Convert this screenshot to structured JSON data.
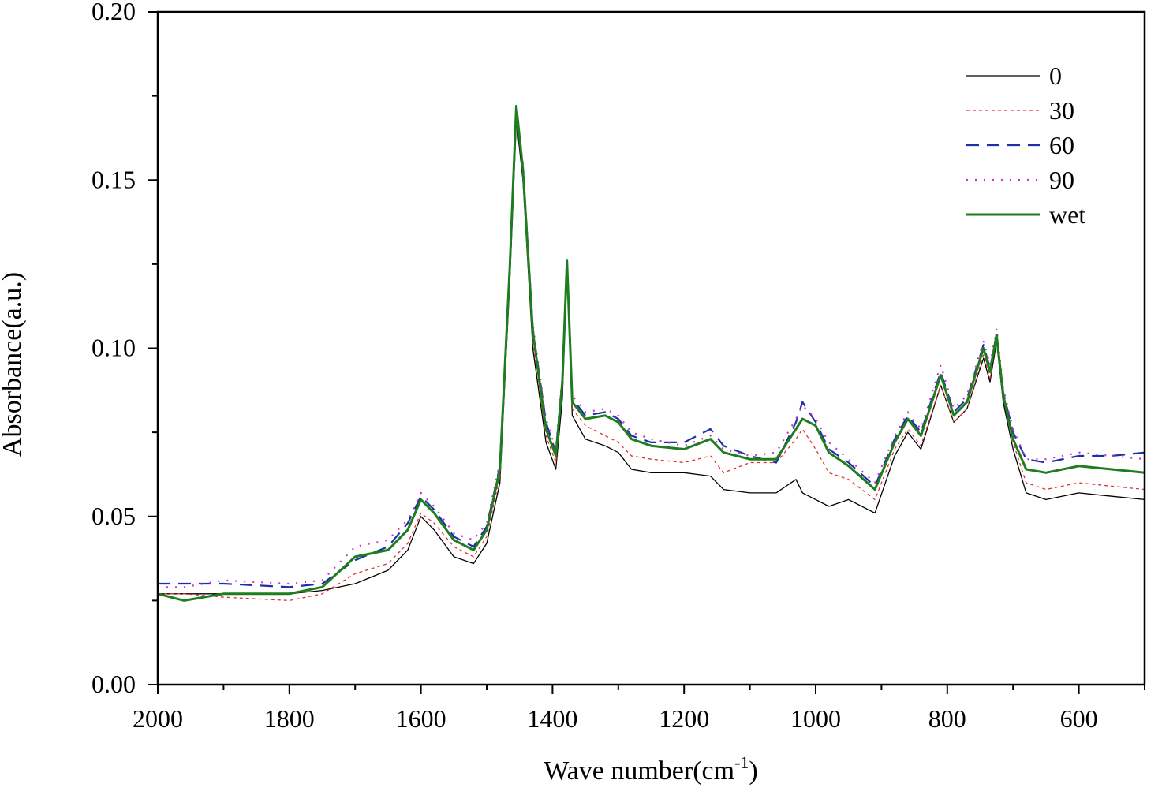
{
  "chart_data": {
    "type": "line",
    "title": "",
    "xlabel": "Wave number(cm",
    "xlabel_sup": "-1",
    "xlabel_close": ")",
    "ylabel": "Absorbance(a.u.)",
    "xlim": [
      2000,
      500
    ],
    "x_reversed": true,
    "ylim": [
      0,
      0.2
    ],
    "x_ticks": [
      2000,
      1800,
      1600,
      1400,
      1200,
      1000,
      800,
      600
    ],
    "x_tick_labels": [
      "2000",
      "1800",
      "1600",
      "1400",
      "1200",
      "1000",
      "800",
      "600"
    ],
    "y_ticks": [
      0,
      0.05,
      0.1,
      0.15,
      0.2
    ],
    "y_tick_labels": [
      "0.00",
      "0.05",
      "0.10",
      "0.15",
      "0.20"
    ],
    "grid": false,
    "legend_position": "top-right",
    "x": [
      2000,
      1960,
      1900,
      1800,
      1750,
      1700,
      1650,
      1620,
      1600,
      1580,
      1550,
      1520,
      1500,
      1480,
      1465,
      1455,
      1445,
      1430,
      1410,
      1395,
      1385,
      1378,
      1370,
      1350,
      1320,
      1300,
      1280,
      1250,
      1200,
      1160,
      1140,
      1100,
      1060,
      1030,
      1020,
      1000,
      980,
      950,
      910,
      880,
      860,
      840,
      810,
      790,
      770,
      745,
      735,
      725,
      715,
      700,
      680,
      650,
      600,
      550,
      500
    ],
    "series": [
      {
        "name": "0",
        "color": "#000000",
        "dash": "",
        "width": 1.3,
        "values": [
          0.027,
          0.027,
          0.027,
          0.027,
          0.028,
          0.03,
          0.034,
          0.04,
          0.05,
          0.046,
          0.038,
          0.036,
          0.042,
          0.06,
          0.12,
          0.168,
          0.15,
          0.1,
          0.072,
          0.064,
          0.085,
          0.124,
          0.08,
          0.073,
          0.071,
          0.069,
          0.064,
          0.063,
          0.063,
          0.062,
          0.058,
          0.057,
          0.057,
          0.061,
          0.057,
          0.055,
          0.053,
          0.055,
          0.051,
          0.068,
          0.075,
          0.07,
          0.089,
          0.078,
          0.082,
          0.097,
          0.09,
          0.102,
          0.084,
          0.07,
          0.057,
          0.055,
          0.057,
          0.056,
          0.055
        ]
      },
      {
        "name": "30",
        "color": "#e03030",
        "dash": "4 4",
        "width": 1.3,
        "values": [
          0.027,
          0.027,
          0.026,
          0.025,
          0.027,
          0.033,
          0.036,
          0.042,
          0.051,
          0.048,
          0.041,
          0.038,
          0.044,
          0.062,
          0.122,
          0.169,
          0.152,
          0.102,
          0.074,
          0.066,
          0.088,
          0.124,
          0.082,
          0.077,
          0.074,
          0.072,
          0.068,
          0.067,
          0.066,
          0.068,
          0.063,
          0.066,
          0.066,
          0.073,
          0.076,
          0.07,
          0.063,
          0.061,
          0.055,
          0.07,
          0.076,
          0.071,
          0.089,
          0.078,
          0.082,
          0.098,
          0.091,
          0.103,
          0.086,
          0.072,
          0.06,
          0.058,
          0.06,
          0.059,
          0.058
        ]
      },
      {
        "name": "60",
        "color": "#1f2fa8",
        "dash": "16 10",
        "width": 2.2,
        "values": [
          0.03,
          0.03,
          0.03,
          0.029,
          0.03,
          0.037,
          0.041,
          0.048,
          0.056,
          0.052,
          0.044,
          0.041,
          0.047,
          0.065,
          0.123,
          0.17,
          0.154,
          0.106,
          0.078,
          0.069,
          0.091,
          0.126,
          0.085,
          0.08,
          0.081,
          0.079,
          0.074,
          0.072,
          0.072,
          0.076,
          0.071,
          0.068,
          0.066,
          0.078,
          0.084,
          0.078,
          0.07,
          0.066,
          0.059,
          0.073,
          0.08,
          0.075,
          0.093,
          0.081,
          0.085,
          0.101,
          0.094,
          0.104,
          0.087,
          0.075,
          0.067,
          0.066,
          0.068,
          0.068,
          0.069
        ]
      },
      {
        "name": "90",
        "color": "#cc33cc",
        "dash": "2 9",
        "width": 2.2,
        "values": [
          0.029,
          0.029,
          0.031,
          0.03,
          0.031,
          0.041,
          0.043,
          0.049,
          0.057,
          0.053,
          0.045,
          0.043,
          0.048,
          0.066,
          0.124,
          0.171,
          0.155,
          0.107,
          0.079,
          0.07,
          0.092,
          0.126,
          0.086,
          0.081,
          0.082,
          0.08,
          0.075,
          0.073,
          0.071,
          0.074,
          0.07,
          0.068,
          0.069,
          0.079,
          0.083,
          0.079,
          0.072,
          0.067,
          0.06,
          0.074,
          0.081,
          0.076,
          0.095,
          0.082,
          0.086,
          0.102,
          0.095,
          0.106,
          0.088,
          0.076,
          0.067,
          0.067,
          0.069,
          0.068,
          0.067
        ]
      },
      {
        "name": "wet",
        "color": "#1e7d1e",
        "dash": "",
        "width": 3,
        "values": [
          0.027,
          0.025,
          0.027,
          0.027,
          0.029,
          0.038,
          0.04,
          0.046,
          0.055,
          0.051,
          0.043,
          0.04,
          0.046,
          0.064,
          0.124,
          0.172,
          0.153,
          0.105,
          0.076,
          0.068,
          0.09,
          0.126,
          0.084,
          0.079,
          0.08,
          0.078,
          0.073,
          0.071,
          0.07,
          0.073,
          0.069,
          0.067,
          0.067,
          0.076,
          0.079,
          0.077,
          0.069,
          0.065,
          0.058,
          0.072,
          0.079,
          0.074,
          0.092,
          0.08,
          0.084,
          0.1,
          0.093,
          0.104,
          0.086,
          0.073,
          0.064,
          0.063,
          0.065,
          0.064,
          0.063
        ]
      }
    ]
  }
}
